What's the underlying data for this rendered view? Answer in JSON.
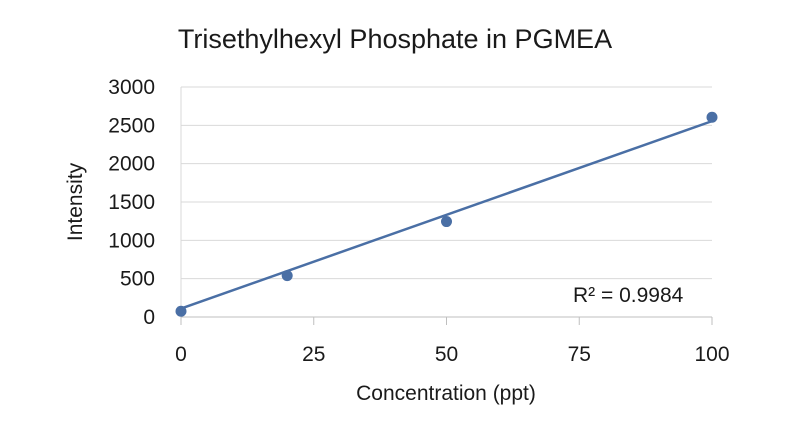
{
  "chart_data": {
    "type": "scatter",
    "title": "Trisethylhexyl Phosphate in PGMEA",
    "xlabel": "Concentration (ppt)",
    "ylabel": "Intensity",
    "xlim": [
      0,
      100
    ],
    "ylim": [
      0,
      3000
    ],
    "x_ticks": [
      0,
      25,
      50,
      75,
      100
    ],
    "y_ticks": [
      0,
      500,
      1000,
      1500,
      2000,
      2500,
      3000
    ],
    "grid": "horizontal",
    "legend": "none",
    "series": [
      {
        "x": [
          0,
          20,
          50,
          100
        ],
        "y": [
          75,
          540,
          1245,
          2605
        ],
        "color": "#4a6fa5"
      }
    ],
    "trendline": {
      "type": "linear",
      "x": [
        0,
        100
      ],
      "y": [
        110,
        2555
      ],
      "color": "#4a6fa5"
    },
    "annotation": "R² = 0.9984"
  }
}
